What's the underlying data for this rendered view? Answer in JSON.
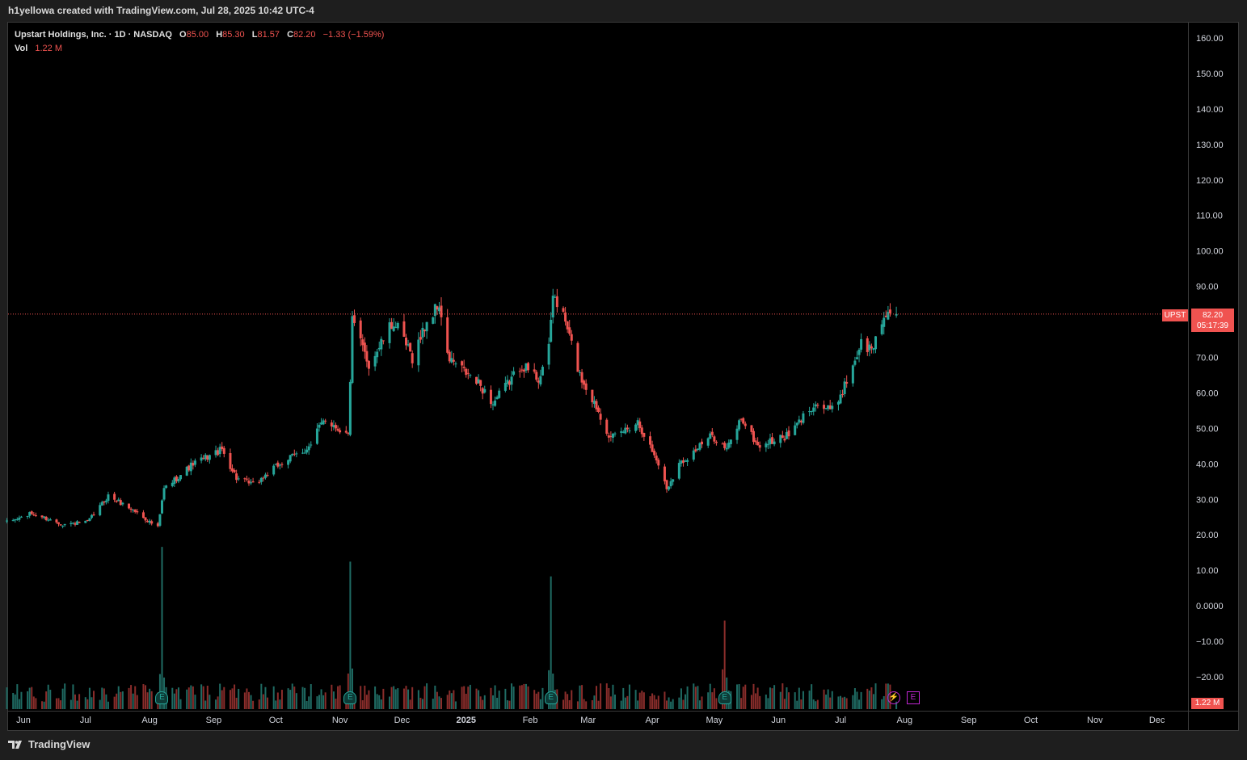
{
  "header": {
    "attribution": "h1yellowa created with TradingView.com, Jul 28, 2025 10:42 UTC-4"
  },
  "legend": {
    "title": "Upstart Holdings, Inc. · 1D · NASDAQ",
    "o_label": "O",
    "o_value": "85.00",
    "h_label": "H",
    "h_value": "85.30",
    "l_label": "L",
    "l_value": "81.57",
    "c_label": "C",
    "c_value": "82.20",
    "change": "−1.33 (−1.59%)",
    "vol_label": "Vol",
    "vol_value": "1.22 M"
  },
  "price_tag": {
    "symbol": "UPST",
    "price": "82.20",
    "countdown": "05:17:39"
  },
  "volume_tag": "1.22 M",
  "markers": {
    "earnings": "E",
    "dividend": "⚡",
    "upcoming": "E"
  },
  "footer": {
    "brand": "TradingView",
    "logo_icon": "tradingview-logo-icon"
  },
  "colors": {
    "up": "#26a69a",
    "down": "#ef5350",
    "up_vol": "#1f6b63",
    "down_vol": "#8a2d2b",
    "background": "#000000",
    "last_price_line": "#f05350",
    "upcoming_marker": "#c026d3"
  },
  "chart_data": {
    "type": "candlestick",
    "symbol": "UPST",
    "name": "Upstart Holdings, Inc.",
    "interval": "1D",
    "exchange": "NASDAQ",
    "y_axis_labels": [
      "160.00",
      "150.00",
      "140.00",
      "130.00",
      "120.00",
      "110.00",
      "100.00",
      "90.00",
      "80.00",
      "70.00",
      "60.00",
      "50.00",
      "40.00",
      "30.00",
      "20.00",
      "10.00",
      "0.0000",
      "−10.00",
      "−20.00"
    ],
    "ylim": [
      -20,
      160
    ],
    "x_axis_labels": [
      "Jun",
      "Jul",
      "Aug",
      "Sep",
      "Oct",
      "Nov",
      "Dec",
      "2025",
      "Feb",
      "Mar",
      "Apr",
      "May",
      "Jun",
      "Jul",
      "Aug",
      "Sep",
      "Oct",
      "Nov",
      "Dec"
    ],
    "x_axis_dates": [
      "2024-06-01",
      "2024-07-01",
      "2024-08-01",
      "2024-09-01",
      "2024-10-01",
      "2024-11-01",
      "2024-12-01",
      "2025-01-01",
      "2025-02-01",
      "2025-03-01",
      "2025-04-01",
      "2025-05-01",
      "2025-06-01",
      "2025-07-01",
      "2025-08-01",
      "2025-09-01",
      "2025-10-01",
      "2025-11-01",
      "2025-12-01"
    ],
    "earnings_dates": [
      "2024-08-07",
      "2024-11-06",
      "2025-02-11",
      "2025-05-06"
    ],
    "upcoming_earnings_date": "2025-08-05",
    "last_price": 82.2,
    "close_points": [
      {
        "date": "2024-05-24",
        "close": 23.5
      },
      {
        "date": "2024-06-05",
        "close": 26
      },
      {
        "date": "2024-06-20",
        "close": 23
      },
      {
        "date": "2024-07-02",
        "close": 23.5
      },
      {
        "date": "2024-07-12",
        "close": 31
      },
      {
        "date": "2024-07-24",
        "close": 27
      },
      {
        "date": "2024-08-05",
        "close": 22
      },
      {
        "date": "2024-08-08",
        "close": 33
      },
      {
        "date": "2024-08-22",
        "close": 40
      },
      {
        "date": "2024-09-05",
        "close": 44
      },
      {
        "date": "2024-09-12",
        "close": 36
      },
      {
        "date": "2024-09-20",
        "close": 34
      },
      {
        "date": "2024-10-03",
        "close": 40
      },
      {
        "date": "2024-10-18",
        "close": 45
      },
      {
        "date": "2024-10-24",
        "close": 53
      },
      {
        "date": "2024-11-05",
        "close": 48
      },
      {
        "date": "2024-11-07",
        "close": 80
      },
      {
        "date": "2024-11-15",
        "close": 68
      },
      {
        "date": "2024-11-27",
        "close": 80
      },
      {
        "date": "2024-12-06",
        "close": 70
      },
      {
        "date": "2024-12-13",
        "close": 80
      },
      {
        "date": "2024-12-19",
        "close": 85
      },
      {
        "date": "2024-12-23",
        "close": 70
      },
      {
        "date": "2025-01-08",
        "close": 62
      },
      {
        "date": "2025-01-14",
        "close": 57
      },
      {
        "date": "2025-01-28",
        "close": 68
      },
      {
        "date": "2025-02-05",
        "close": 64
      },
      {
        "date": "2025-02-10",
        "close": 72
      },
      {
        "date": "2025-02-12",
        "close": 88
      },
      {
        "date": "2025-02-18",
        "close": 80
      },
      {
        "date": "2025-02-25",
        "close": 65
      },
      {
        "date": "2025-03-06",
        "close": 55
      },
      {
        "date": "2025-03-12",
        "close": 47
      },
      {
        "date": "2025-03-25",
        "close": 52
      },
      {
        "date": "2025-04-04",
        "close": 40
      },
      {
        "date": "2025-04-08",
        "close": 33
      },
      {
        "date": "2025-04-14",
        "close": 40
      },
      {
        "date": "2025-04-30",
        "close": 48
      },
      {
        "date": "2025-05-07",
        "close": 44
      },
      {
        "date": "2025-05-14",
        "close": 53
      },
      {
        "date": "2025-05-22",
        "close": 45
      },
      {
        "date": "2025-06-06",
        "close": 48
      },
      {
        "date": "2025-06-18",
        "close": 57
      },
      {
        "date": "2025-06-27",
        "close": 55
      },
      {
        "date": "2025-07-03",
        "close": 62
      },
      {
        "date": "2025-07-11",
        "close": 74
      },
      {
        "date": "2025-07-16",
        "close": 72
      },
      {
        "date": "2025-07-23",
        "close": 83
      },
      {
        "date": "2025-07-28",
        "close": 82.2
      }
    ],
    "volume_spikes_millions": [
      {
        "date": "2024-08-07",
        "volume": 22
      },
      {
        "date": "2024-11-06",
        "volume": 20
      },
      {
        "date": "2025-02-11",
        "volume": 18
      },
      {
        "date": "2025-05-06",
        "volume": 12
      }
    ]
  }
}
